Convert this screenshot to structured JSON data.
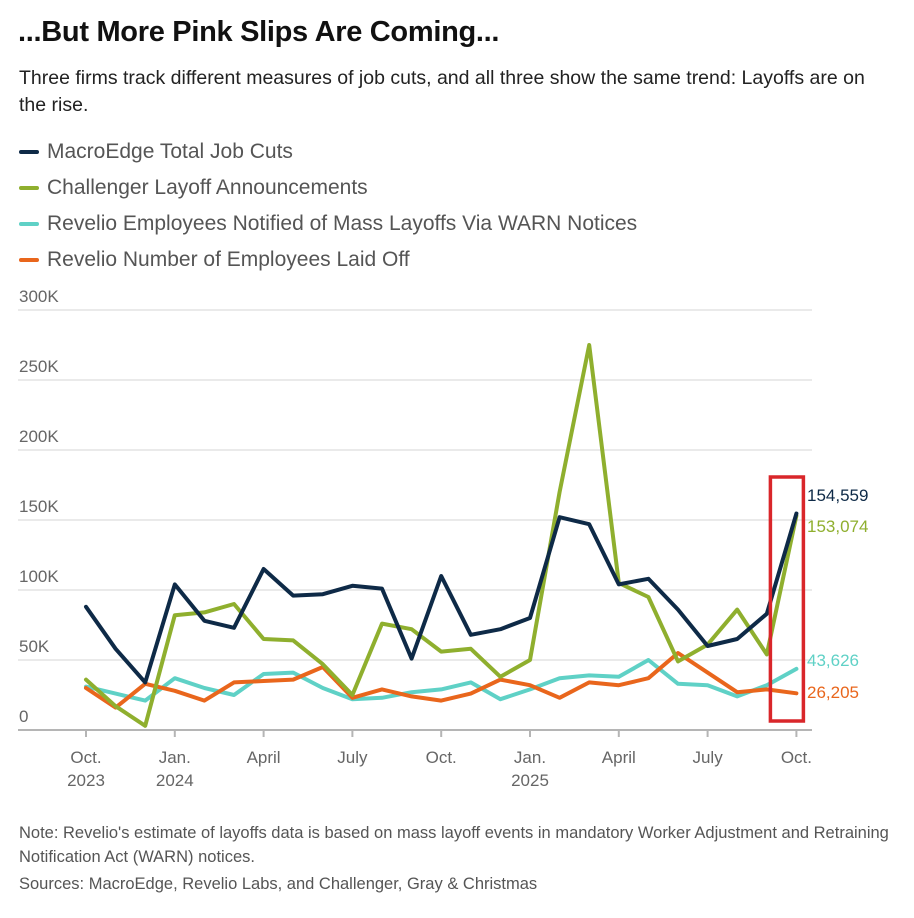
{
  "title": "...But More Pink Slips Are Coming...",
  "subtitle": "Three firms track different measures of job cuts, and all three show the same trend: Layoffs are on the rise.",
  "note": "Note: Revelio's estimate of layoffs data is based on mass layoff events in mandatory Worker Adjustment and Retraining Notification Act (WARN) notices.",
  "source": "Sources: MacroEdge, Revelio Labs, and Challenger, Gray & Christmas",
  "colors": {
    "macroedge": "#0e2a47",
    "challenger": "#8faf2e",
    "warn": "#5fd1c6",
    "laidoff": "#e9661c",
    "highlight": "#d9262a",
    "grid": "#e3e3e3",
    "axis": "#b5b5b5",
    "tick_text": "#666666"
  },
  "chart_data": {
    "type": "line",
    "x": [
      "2023-10",
      "2023-11",
      "2023-12",
      "2024-01",
      "2024-02",
      "2024-03",
      "2024-04",
      "2024-05",
      "2024-06",
      "2024-07",
      "2024-08",
      "2024-09",
      "2024-10",
      "2024-11",
      "2024-12",
      "2025-01",
      "2025-02",
      "2025-03",
      "2025-04",
      "2025-05",
      "2025-06",
      "2025-07",
      "2025-08",
      "2025-09",
      "2025-10"
    ],
    "y_ticks": [
      "300K",
      "250K",
      "200K",
      "150K",
      "100K",
      "50K",
      "0"
    ],
    "ylim": [
      0,
      300000
    ],
    "x_ticks": [
      {
        "x": "2023-10",
        "line1": "Oct.",
        "line2": "2023"
      },
      {
        "x": "2024-01",
        "line1": "Jan.",
        "line2": "2024"
      },
      {
        "x": "2024-04",
        "line1": "April",
        "line2": ""
      },
      {
        "x": "2024-07",
        "line1": "July",
        "line2": ""
      },
      {
        "x": "2024-10",
        "line1": "Oct.",
        "line2": ""
      },
      {
        "x": "2025-01",
        "line1": "Jan.",
        "line2": "2025"
      },
      {
        "x": "2025-04",
        "line1": "April",
        "line2": ""
      },
      {
        "x": "2025-07",
        "line1": "July",
        "line2": ""
      },
      {
        "x": "2025-10",
        "line1": "Oct.",
        "line2": ""
      }
    ],
    "grid": true,
    "legend_position": "top-left",
    "highlight_x": "2025-10",
    "series": [
      {
        "key": "macroedge",
        "name": "MacroEdge Total Job Cuts",
        "end_label": "154,559",
        "values": [
          88000,
          58000,
          34000,
          104000,
          78000,
          73000,
          115000,
          96000,
          97000,
          103000,
          101000,
          51000,
          110000,
          68000,
          72000,
          80000,
          152000,
          147000,
          104000,
          108000,
          86000,
          60000,
          65000,
          83000,
          154559
        ]
      },
      {
        "key": "challenger",
        "name": "Challenger Layoff Announcements",
        "end_label": "153,074",
        "values": [
          36000,
          17000,
          3000,
          82000,
          84000,
          90000,
          65000,
          64000,
          47000,
          25000,
          76000,
          72000,
          56000,
          58000,
          38000,
          50000,
          170000,
          275000,
          105000,
          95000,
          49000,
          61000,
          86000,
          54000,
          153074
        ]
      },
      {
        "key": "warn",
        "name": "Revelio Employees Notified of Mass Layoffs Via WARN Notices",
        "end_label": "43,626",
        "values": [
          31000,
          26000,
          21000,
          37000,
          30000,
          25000,
          40000,
          41000,
          30000,
          22000,
          23000,
          27000,
          29000,
          34000,
          22000,
          29000,
          37000,
          39000,
          38000,
          50000,
          33000,
          32000,
          24000,
          32000,
          43626
        ]
      },
      {
        "key": "laidoff",
        "name": "Revelio Number of Employees Laid Off",
        "end_label": "26,205",
        "values": [
          30000,
          16000,
          33000,
          28000,
          21000,
          34000,
          35000,
          36000,
          45000,
          23000,
          29000,
          24000,
          21000,
          26000,
          36000,
          32000,
          23000,
          34000,
          32000,
          37000,
          55000,
          41000,
          27000,
          29000,
          26205
        ]
      }
    ]
  }
}
